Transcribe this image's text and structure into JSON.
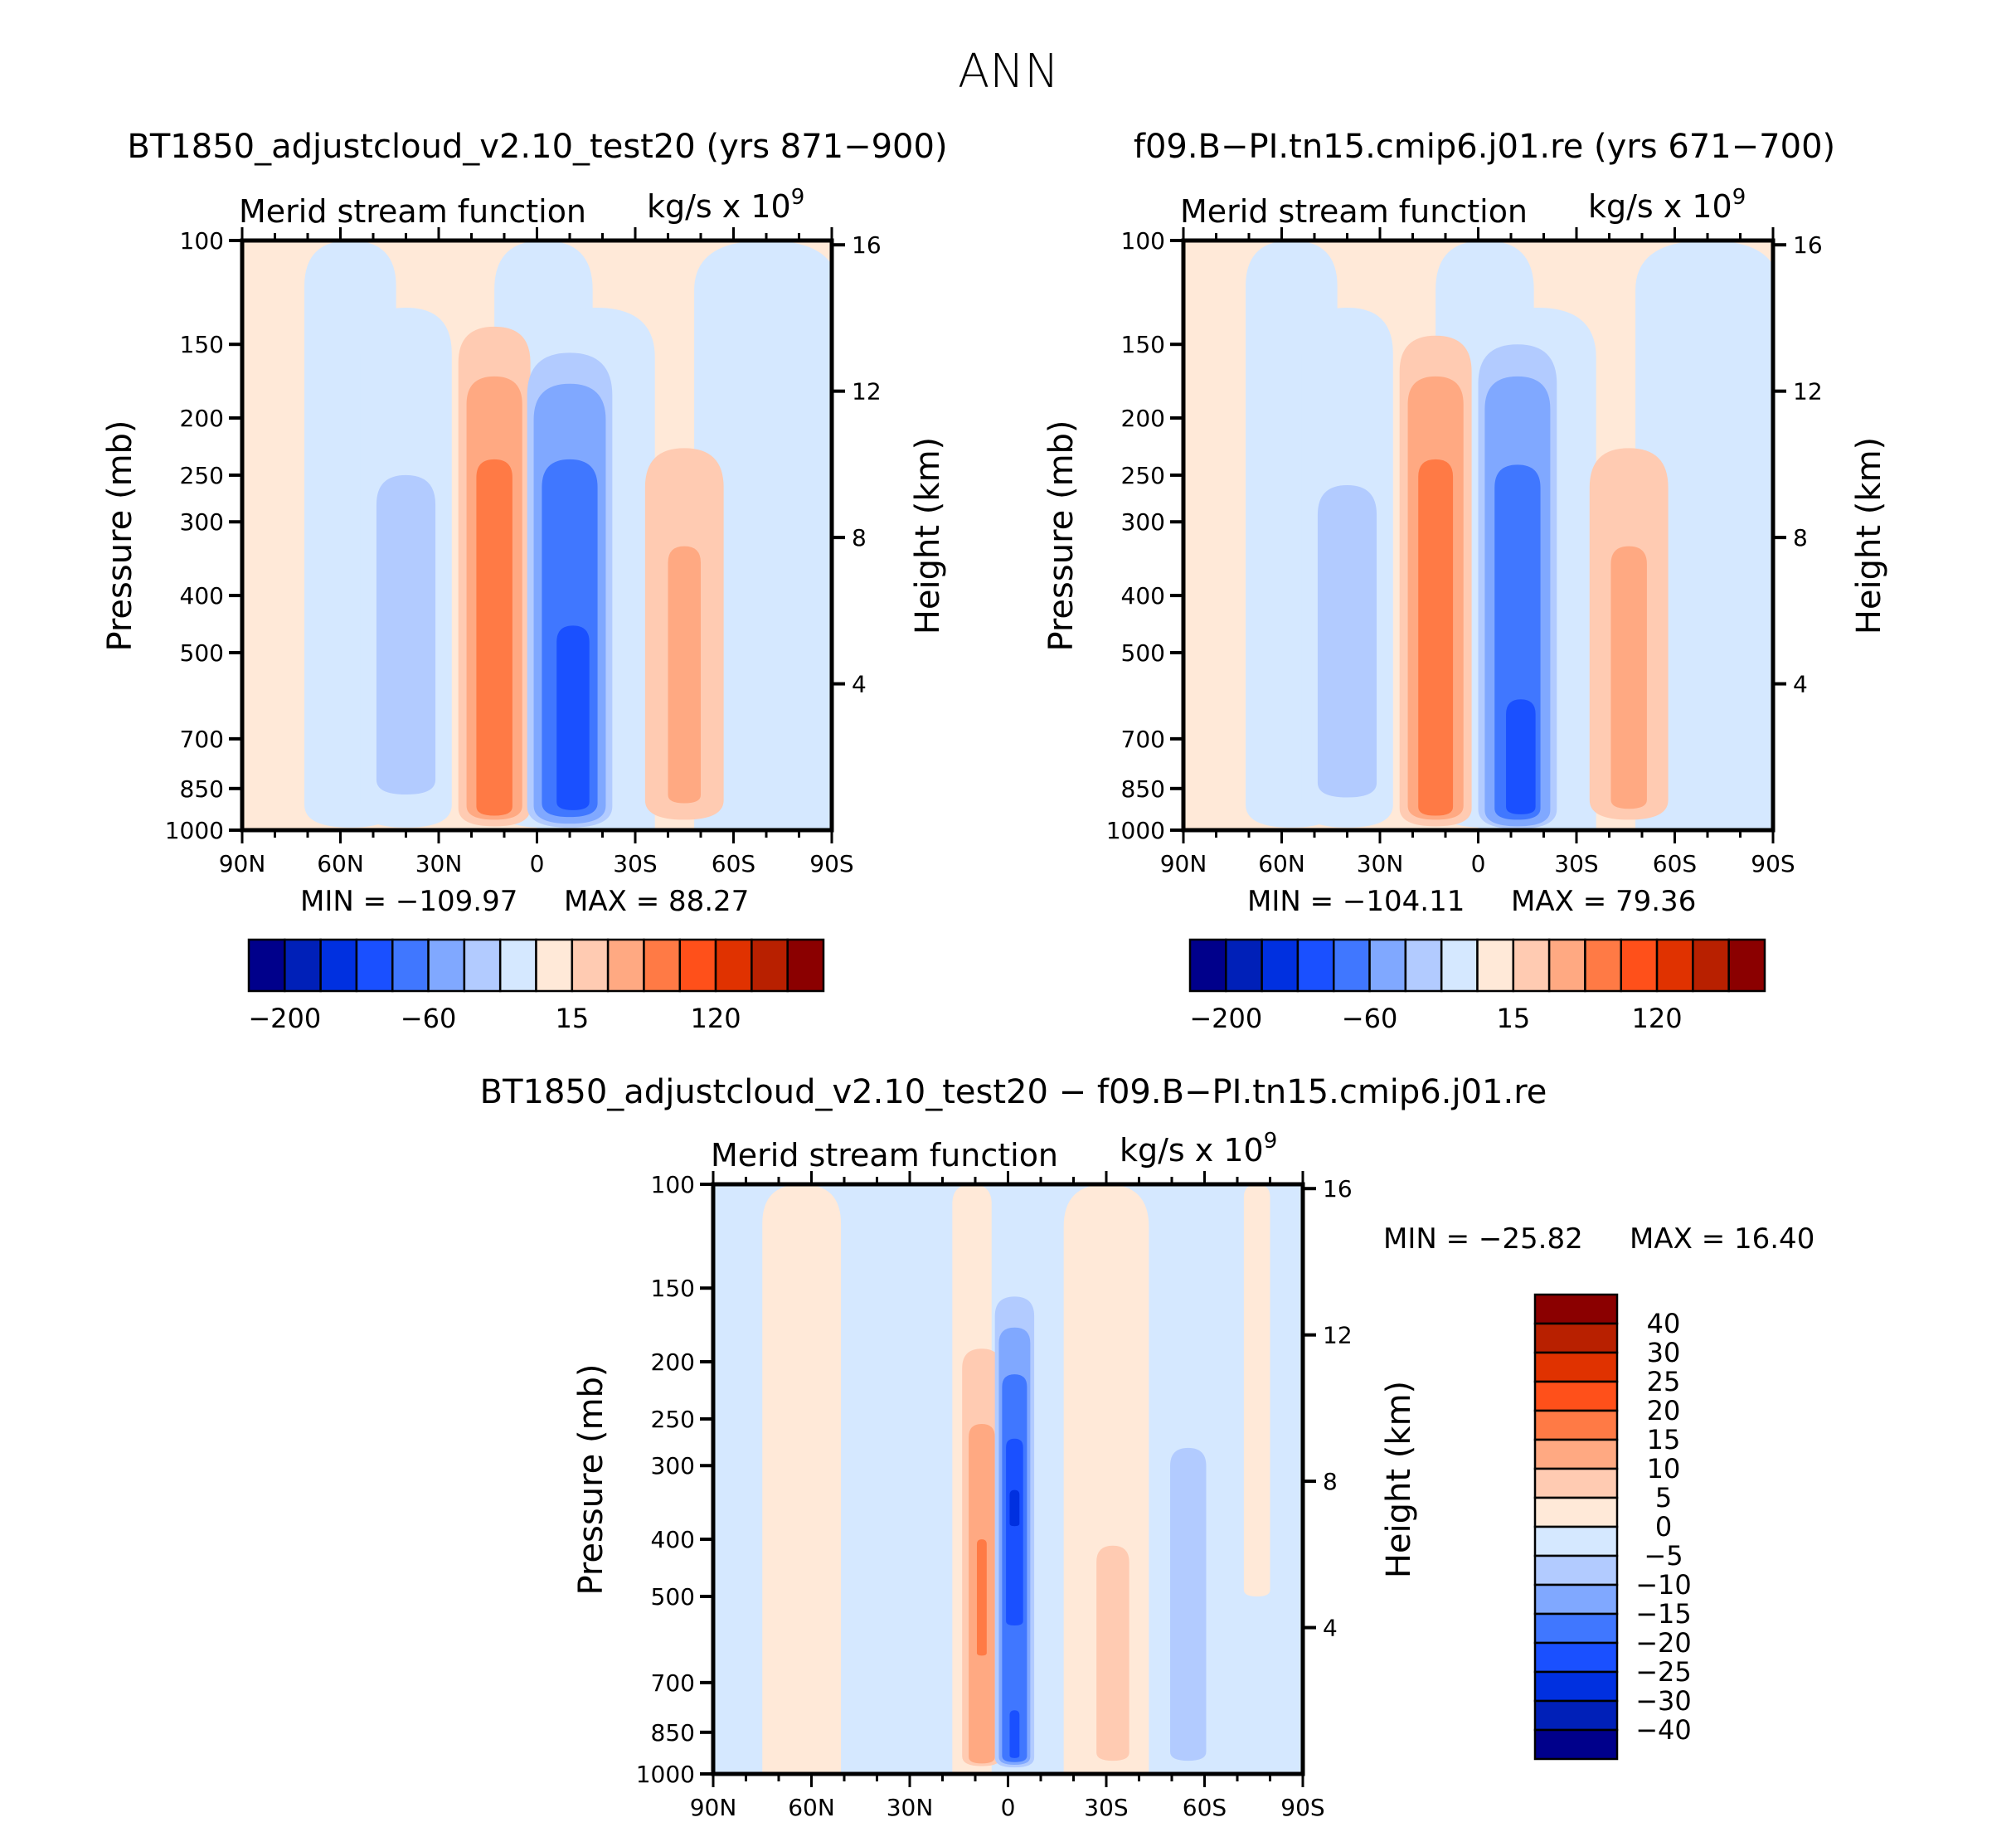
{
  "figure": {
    "title": "ANN"
  },
  "colormap": {
    "colors": [
      "#00008b",
      "#0020b8",
      "#0030e0",
      "#1a50ff",
      "#4077ff",
      "#80a8ff",
      "#b2cbff",
      "#d5e8ff",
      "#ffe9d8",
      "#ffcbb2",
      "#ffa982",
      "#ff7a45",
      "#ff501a",
      "#e03200",
      "#b82000",
      "#8b0000"
    ]
  },
  "chart_data": [
    {
      "type": "heatmap",
      "title": "BT1850_adjustcloud_v2.10_test20 (yrs 871−900)",
      "left_string": "Merid stream function",
      "right_string": "kg/s x 10",
      "right_string_sup": "9",
      "xlabel": "",
      "ylabel": "Pressure (mb)",
      "ylabel_right": "Height (km)",
      "x_ticks": [
        "90N",
        "60N",
        "30N",
        "0",
        "30S",
        "60S",
        "90S"
      ],
      "y_ticks": [
        "100",
        "150",
        "200",
        "250",
        "300",
        "400",
        "500",
        "700",
        "850",
        "1000"
      ],
      "y_ticks_right": [
        "16",
        "12",
        "8",
        "4"
      ],
      "xlim": [
        -90,
        90
      ],
      "ylim_mb": [
        1000,
        100
      ],
      "yscale": "log",
      "min_label": "MIN = −109.97",
      "max_label": "MAX =   88.27",
      "min": -109.97,
      "max": 88.27,
      "colorbar": {
        "orientation": "horizontal",
        "tick_labels": [
          "−200",
          "−60",
          "15",
          "120"
        ]
      },
      "features": [
        {
          "kind": "cell",
          "lat_center": 13,
          "p_top": 145,
          "p_bottom": 950,
          "peak_level": 88.27,
          "sign": "positive"
        },
        {
          "kind": "cell",
          "lat_center": -10,
          "p_top": 160,
          "p_bottom": 960,
          "peak_level": -109.97,
          "sign": "negative"
        },
        {
          "kind": "cell",
          "lat_center": -45,
          "p_top": 220,
          "p_bottom": 920,
          "peak_level": 40,
          "sign": "positive"
        },
        {
          "kind": "cell",
          "lat_center": 40,
          "p_top": 250,
          "p_bottom": 900,
          "peak_level": -20,
          "sign": "negative"
        }
      ]
    },
    {
      "type": "heatmap",
      "title": "f09.B−PI.tn15.cmip6.j01.re (yrs 671−700)",
      "left_string": "Merid stream function",
      "right_string": "kg/s x 10",
      "right_string_sup": "9",
      "xlabel": "",
      "ylabel": "Pressure (mb)",
      "ylabel_right": "Height (km)",
      "x_ticks": [
        "90N",
        "60N",
        "30N",
        "0",
        "30S",
        "60S",
        "90S"
      ],
      "y_ticks": [
        "100",
        "150",
        "200",
        "250",
        "300",
        "400",
        "500",
        "700",
        "850",
        "1000"
      ],
      "y_ticks_right": [
        "16",
        "12",
        "8",
        "4"
      ],
      "xlim": [
        -90,
        90
      ],
      "ylim_mb": [
        1000,
        100
      ],
      "yscale": "log",
      "min_label": "MIN = −104.11",
      "max_label": "MAX =   79.36",
      "min": -104.11,
      "max": 79.36,
      "colorbar": {
        "orientation": "horizontal",
        "tick_labels": [
          "−200",
          "−60",
          "15",
          "120"
        ]
      },
      "features": [
        {
          "kind": "cell",
          "lat_center": 13,
          "p_top": 145,
          "p_bottom": 950,
          "peak_level": 79.36,
          "sign": "positive"
        },
        {
          "kind": "cell",
          "lat_center": -12,
          "p_top": 150,
          "p_bottom": 960,
          "peak_level": -104.11,
          "sign": "negative"
        },
        {
          "kind": "cell",
          "lat_center": -45,
          "p_top": 220,
          "p_bottom": 920,
          "peak_level": 40,
          "sign": "positive"
        },
        {
          "kind": "cell",
          "lat_center": 40,
          "p_top": 250,
          "p_bottom": 900,
          "peak_level": -20,
          "sign": "negative"
        }
      ]
    },
    {
      "type": "heatmap",
      "title": "BT1850_adjustcloud_v2.10_test20 − f09.B−PI.tn15.cmip6.j01.re",
      "left_string": "Merid stream function",
      "right_string": "kg/s x 10",
      "right_string_sup": "9",
      "xlabel": "",
      "ylabel": "Pressure (mb)",
      "ylabel_right": "Height (km)",
      "x_ticks": [
        "90N",
        "60N",
        "30N",
        "0",
        "30S",
        "60S",
        "90S"
      ],
      "y_ticks": [
        "100",
        "150",
        "200",
        "250",
        "300",
        "400",
        "500",
        "700",
        "850",
        "1000"
      ],
      "y_ticks_right": [
        "16",
        "12",
        "8",
        "4"
      ],
      "xlim": [
        -90,
        90
      ],
      "ylim_mb": [
        1000,
        100
      ],
      "yscale": "log",
      "min_label": "MIN = −25.82",
      "max_label": "MAX =   16.40",
      "min": -25.82,
      "max": 16.4,
      "colorbar": {
        "orientation": "vertical",
        "levels": [
          40,
          30,
          25,
          20,
          15,
          10,
          5,
          0,
          -5,
          -10,
          -15,
          -20,
          -25,
          -30,
          -40
        ],
        "tick_labels": [
          "40",
          "30",
          "25",
          "20",
          "15",
          "10",
          "5",
          "0",
          "−5",
          "−10",
          "−15",
          "−20",
          "−25",
          "−30",
          "−40"
        ]
      },
      "features": [
        {
          "kind": "cell",
          "lat_center": 8,
          "p_top": 190,
          "p_bottom": 960,
          "peak_level": 16.4,
          "sign": "positive"
        },
        {
          "kind": "cell",
          "lat_center": -2,
          "p_top": 155,
          "p_bottom": 970,
          "peak_level": -25.82,
          "sign": "negative"
        },
        {
          "kind": "cell",
          "lat_center": -32,
          "p_top": 410,
          "p_bottom": 950,
          "peak_level": 8,
          "sign": "positive"
        },
        {
          "kind": "cell",
          "lat_center": -55,
          "p_top": 280,
          "p_bottom": 950,
          "peak_level": -8,
          "sign": "negative"
        }
      ]
    }
  ]
}
